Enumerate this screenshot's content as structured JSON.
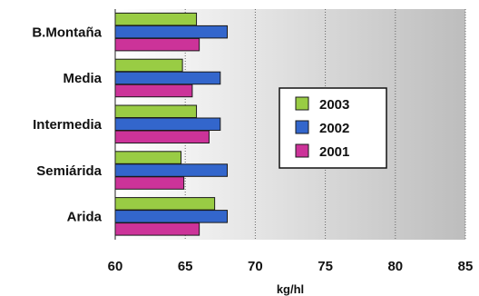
{
  "chart_data": {
    "type": "bar",
    "orientation": "horizontal",
    "title": "",
    "xlabel": "kg/hl",
    "ylabel": "",
    "xlim": [
      60,
      85
    ],
    "xticks": [
      60,
      65,
      70,
      75,
      80,
      85
    ],
    "grid": "vertical dotted",
    "categories": [
      "B.Montaña",
      "Media",
      "Intermedia",
      "Semiárida",
      "Arida"
    ],
    "series": [
      {
        "name": "2003",
        "color": "#99CC44",
        "values": [
          65.8,
          64.8,
          65.8,
          64.7,
          67.1
        ]
      },
      {
        "name": "2002",
        "color": "#3366CC",
        "values": [
          68.0,
          67.5,
          67.5,
          68.0,
          68.0
        ]
      },
      {
        "name": "2001",
        "color": "#CC3399",
        "values": [
          66.0,
          65.5,
          66.7,
          64.9,
          66.0
        ]
      }
    ],
    "legend_position": "right-center"
  }
}
